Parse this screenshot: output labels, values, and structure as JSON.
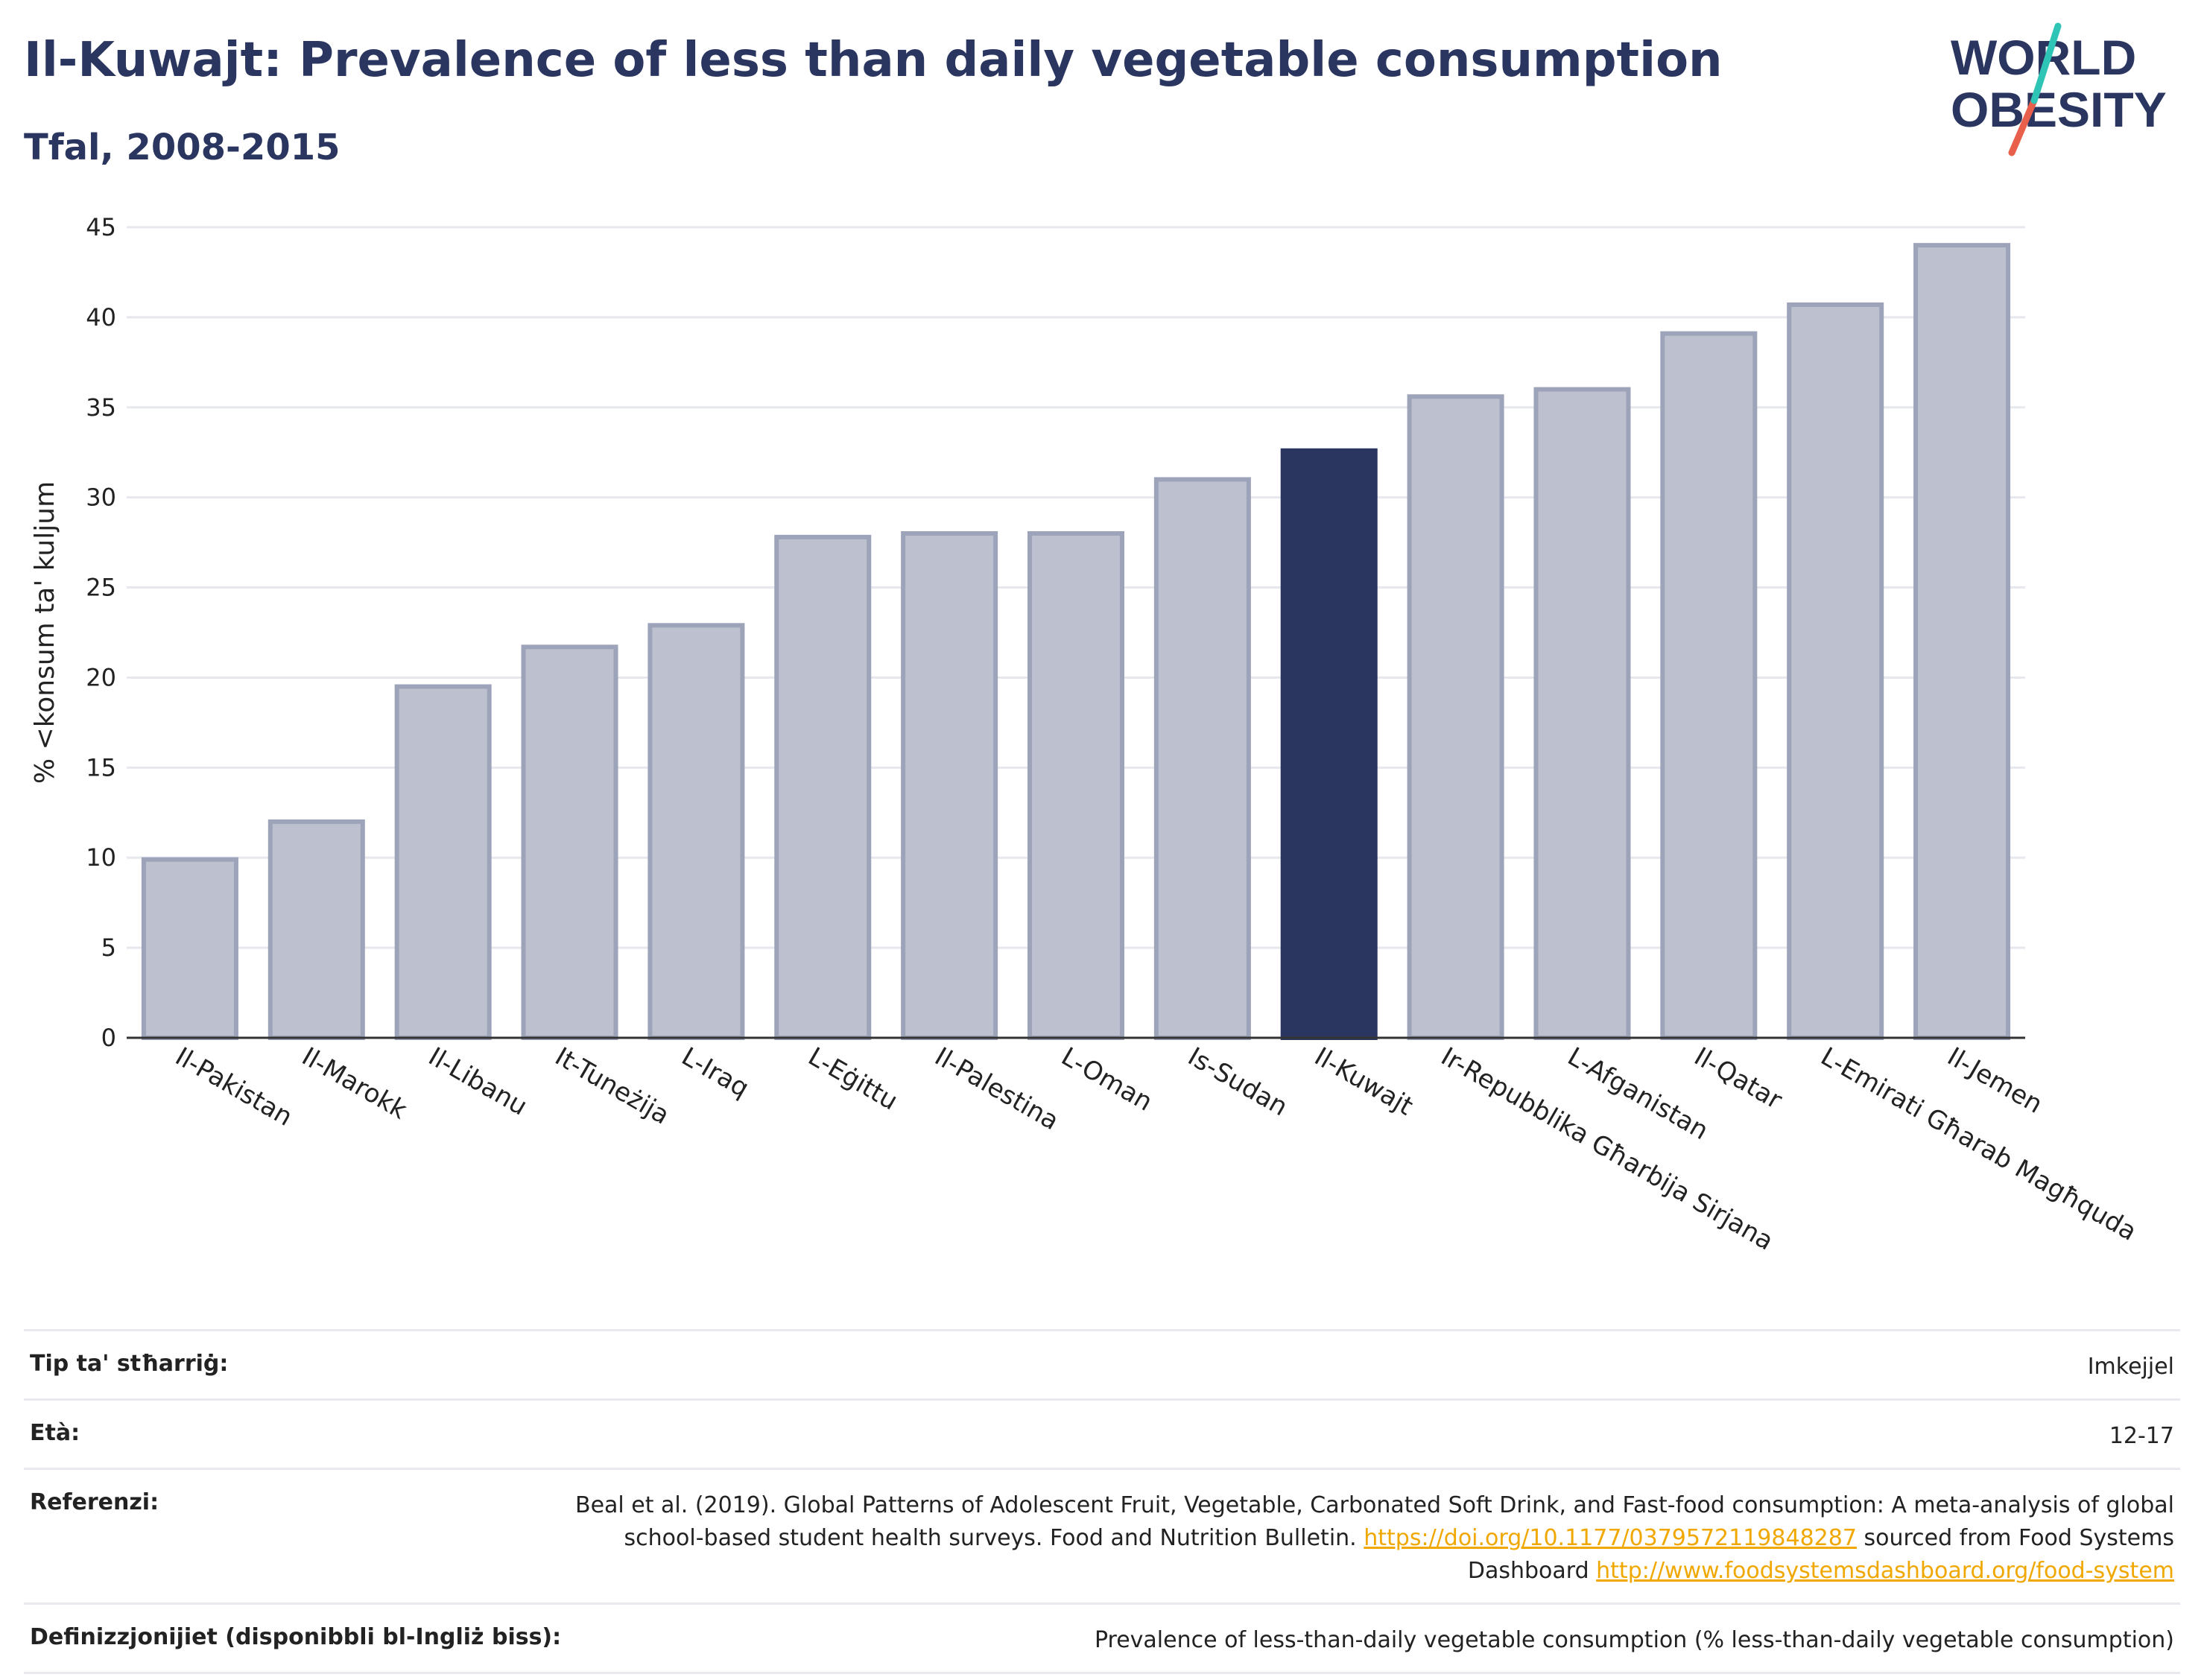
{
  "header": {
    "title": "Il-Kuwajt: Prevalence of less than daily vegetable consumption",
    "subtitle": "Tfal, 2008-2015"
  },
  "logo": {
    "line1": "WORLD",
    "line2": "OBESITY",
    "accent_colors": [
      "#2ec4b6",
      "#e8604c"
    ]
  },
  "chart_data": {
    "type": "bar",
    "ylabel": "% <konsum ta' kuljum",
    "xlabel": "",
    "ylim": [
      0,
      45
    ],
    "yticks": [
      0,
      5,
      10,
      15,
      20,
      25,
      30,
      35,
      40,
      45
    ],
    "grid": true,
    "categories": [
      "Il-Pakistan",
      "Il-Marokk",
      "Il-Libanu",
      "It-Tuneżija",
      "L-Iraq",
      "L-Eġittu",
      "Il-Palestina",
      "L-Oman",
      "Is-Sudan",
      "Il-Kuwajt",
      "Ir-Repubblika Għarbija Sirjana",
      "L-Afganistan",
      "Il-Qatar",
      "L-Emirati Għarab Magħquda",
      "Il-Jemen"
    ],
    "values": [
      9.9,
      12.0,
      19.5,
      21.7,
      22.9,
      27.8,
      28.0,
      28.0,
      31.0,
      32.6,
      35.6,
      36.0,
      39.1,
      40.7,
      44.0
    ],
    "highlight": "Il-Kuwajt",
    "colors": {
      "bar": "#bdc1cf",
      "bar_border": "#9da3b9",
      "highlight": "#2a3660"
    }
  },
  "meta": [
    {
      "label": "Tip ta' stħarriġ:",
      "value": "Imkejjel"
    },
    {
      "label": "Età:",
      "value": "12-17"
    },
    {
      "label": "Referenzi:",
      "value_text1": "Beal et al. (2019). Global Patterns of Adolescent Fruit, Vegetable, Carbonated Soft Drink, and Fast-food consumption: A meta-analysis of global school-based student health surveys. Food and Nutrition Bulletin. ",
      "link1": "https://doi.org/10.1177/0379572119848287",
      "value_text2": " sourced from Food Systems Dashboard ",
      "link2": "http://www.foodsystemsdashboard.org/food-system"
    },
    {
      "label": "Definizzjonijiet (disponibbli bl-Ingliż biss):",
      "value": "Prevalence of less-than-daily vegetable consumption (% less-than-daily vegetable consumption)"
    }
  ]
}
